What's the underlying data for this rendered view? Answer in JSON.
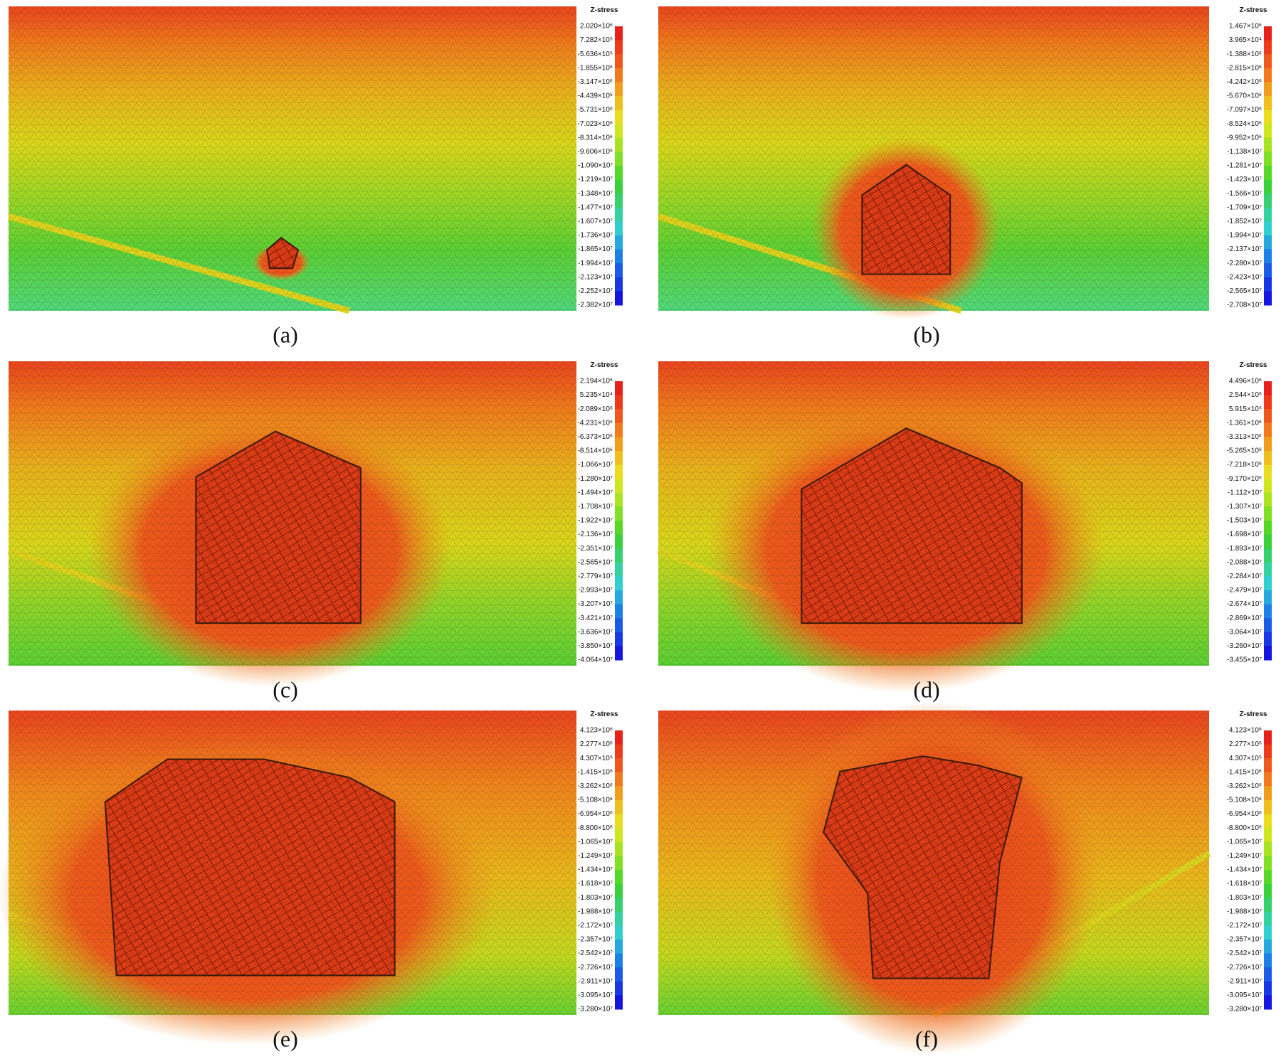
{
  "panels": [
    {
      "caption": "(a)",
      "colorbar": {
        "title": "Z-stress",
        "labels": [
          "2.020×10⁶",
          "7.282×10⁵",
          "-5.636×10⁵",
          "-1.855×10⁶",
          "-3.147×10⁶",
          "-4.439×10⁶",
          "-5.731×10⁶",
          "-7.023×10⁶",
          "-8.314×10⁶",
          "-9.606×10⁶",
          "-1.090×10⁷",
          "-1.219×10⁷",
          "-1.348×10⁷",
          "-1.477×10⁷",
          "-1.607×10⁷",
          "-1.736×10⁷",
          "-1.865×10⁷",
          "-1.994×10⁷",
          "-2.123×10⁷",
          "-2.252×10⁷",
          "-2.382×10⁷"
        ]
      }
    },
    {
      "caption": "(b)",
      "colorbar": {
        "title": "Z-stress",
        "labels": [
          "1.467×10⁶",
          "3.965×10⁴",
          "-1.388×10⁶",
          "-2.815×10⁶",
          "-4.242×10⁶",
          "-5.670×10⁶",
          "-7.097×10⁶",
          "-8.524×10⁶",
          "-9.952×10⁶",
          "-1.138×10⁷",
          "-1.281×10⁷",
          "-1.423×10⁷",
          "-1.566×10⁷",
          "-1.709×10⁷",
          "-1.852×10⁷",
          "-1.994×10⁷",
          "-2.137×10⁷",
          "-2.280×10⁷",
          "-2.423×10⁷",
          "-2.565×10⁷",
          "-2.708×10⁷"
        ]
      }
    },
    {
      "caption": "(c)",
      "colorbar": {
        "title": "Z-stress",
        "labels": [
          "2.194×10⁶",
          "5.235×10⁴",
          "-2.089×10⁶",
          "-4.231×10⁶",
          "-6.373×10⁶",
          "-8.514×10⁶",
          "-1.066×10⁷",
          "-1.280×10⁷",
          "-1.494×10⁷",
          "-1.708×10⁷",
          "-1.922×10⁷",
          "-2.136×10⁷",
          "-2.351×10⁷",
          "-2.565×10⁷",
          "-2.779×10⁷",
          "-2.993×10⁷",
          "-3.207×10⁷",
          "-3.421×10⁷",
          "-3.636×10⁷",
          "-3.850×10⁷",
          "-4.064×10⁷"
        ]
      }
    },
    {
      "caption": "(d)",
      "colorbar": {
        "title": "Z-stress",
        "labels": [
          "4.496×10⁶",
          "2.544×10⁶",
          "5.915×10⁵",
          "-1.361×10⁶",
          "-3.313×10⁶",
          "-5.265×10⁶",
          "-7.218×10⁶",
          "-9.170×10⁶",
          "-1.112×10⁷",
          "-1.307×10⁷",
          "-1.503×10⁷",
          "-1.698×10⁷",
          "-1.893×10⁷",
          "-2.088×10⁷",
          "-2.284×10⁷",
          "-2.479×10⁷",
          "-2.674×10⁷",
          "-2.869×10⁷",
          "-3.064×10⁷",
          "-3.260×10⁷",
          "-3.455×10⁷"
        ]
      }
    },
    {
      "caption": "(e)",
      "colorbar": {
        "title": "Z-stress",
        "labels": [
          "4.123×10⁶",
          "2.277×10⁶",
          "4.307×10⁵",
          "-1.415×10⁶",
          "-3.262×10⁶",
          "-5.108×10⁶",
          "-6.954×10⁶",
          "-8.800×10⁶",
          "-1.065×10⁷",
          "-1.249×10⁷",
          "-1.434×10⁷",
          "-1.618×10⁷",
          "-1.803×10⁷",
          "-1.988×10⁷",
          "-2.172×10⁷",
          "-2.357×10⁷",
          "-2.542×10⁷",
          "-2.726×10⁷",
          "-2.911×10⁷",
          "-3.095×10⁷",
          "-3.280×10⁷"
        ]
      }
    },
    {
      "caption": "(f)",
      "colorbar": {
        "title": "Z-stress",
        "labels": [
          "4.123×10⁶",
          "2.277×10⁶",
          "4.307×10⁵",
          "-1.415×10⁶",
          "-3.262×10⁶",
          "-5.108×10⁶",
          "-6.954×10⁶",
          "-8.800×10⁶",
          "-1.065×10⁷",
          "-1.249×10⁷",
          "-1.434×10⁷",
          "-1.618×10⁷",
          "-1.803×10⁷",
          "-1.988×10⁷",
          "-2.172×10⁷",
          "-2.357×10⁷",
          "-2.542×10⁷",
          "-2.726×10⁷",
          "-2.911×10⁷",
          "-3.095×10⁷",
          "-3.280×10⁷"
        ]
      }
    }
  ]
}
